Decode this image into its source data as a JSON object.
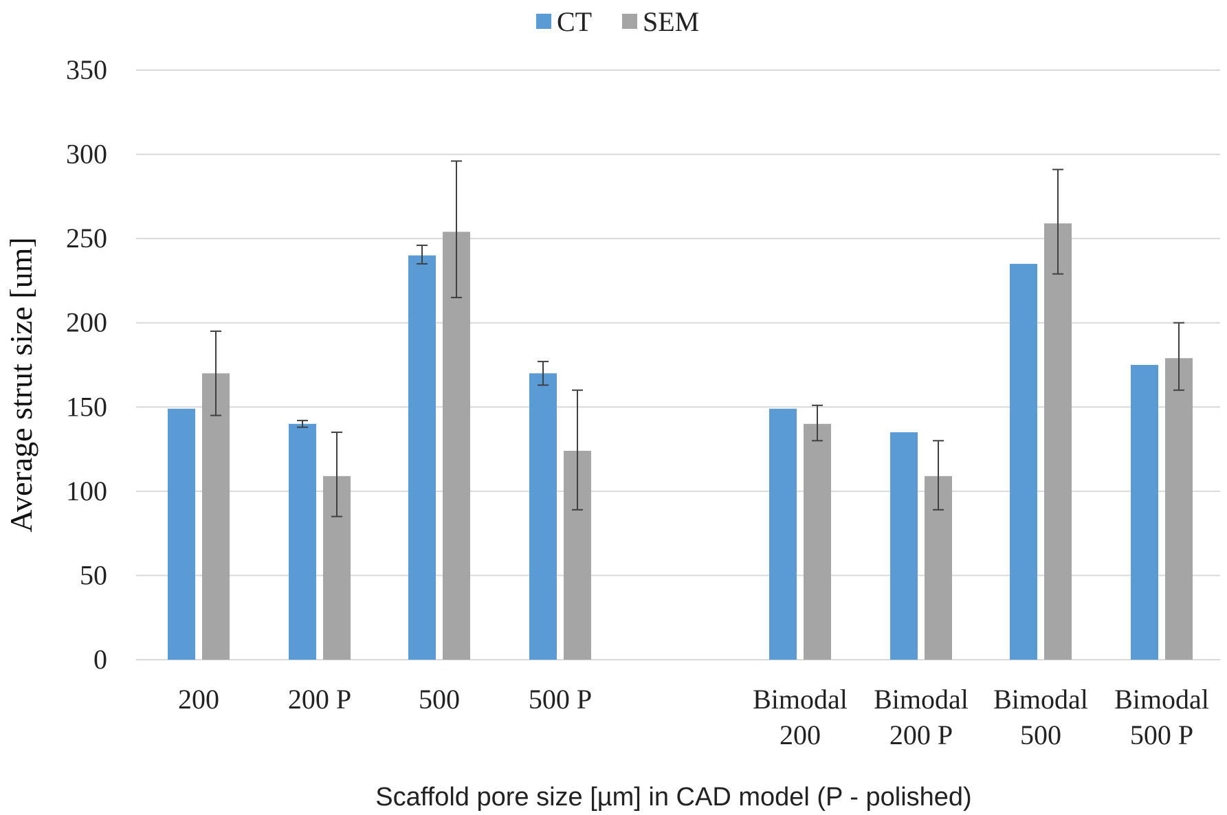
{
  "chart_data": {
    "type": "bar",
    "title": "",
    "xlabel": "Scaffold pore size [µm] in CAD model (P - polished)",
    "ylabel": "Average strut size [um]",
    "ylim": [
      0,
      350
    ],
    "yticks": [
      0,
      50,
      100,
      150,
      200,
      250,
      300,
      350
    ],
    "grid": true,
    "legend_position": "top-center",
    "categories": [
      [
        "200"
      ],
      [
        "200 P"
      ],
      [
        "500"
      ],
      [
        "500 P"
      ],
      [],
      [
        "Bimodal",
        "200"
      ],
      [
        "Bimodal",
        "200 P"
      ],
      [
        "Bimodal",
        "500"
      ],
      [
        "Bimodal",
        "500 P"
      ]
    ],
    "series": [
      {
        "name": "CT",
        "color": "#5b9bd5",
        "values": [
          149,
          140,
          240,
          170,
          null,
          149,
          135,
          235,
          175
        ],
        "error": [
          null,
          [
            138,
            142
          ],
          [
            235,
            246
          ],
          [
            163,
            177
          ],
          null,
          null,
          null,
          null,
          null
        ]
      },
      {
        "name": "SEM",
        "color": "#a5a5a5",
        "values": [
          170,
          109,
          254,
          124,
          null,
          140,
          109,
          259,
          179
        ],
        "error": [
          [
            145,
            195
          ],
          [
            85,
            135
          ],
          [
            215,
            296
          ],
          [
            89,
            160
          ],
          null,
          [
            130,
            151
          ],
          [
            89,
            130
          ],
          [
            229,
            291
          ],
          [
            160,
            200
          ]
        ]
      }
    ]
  }
}
